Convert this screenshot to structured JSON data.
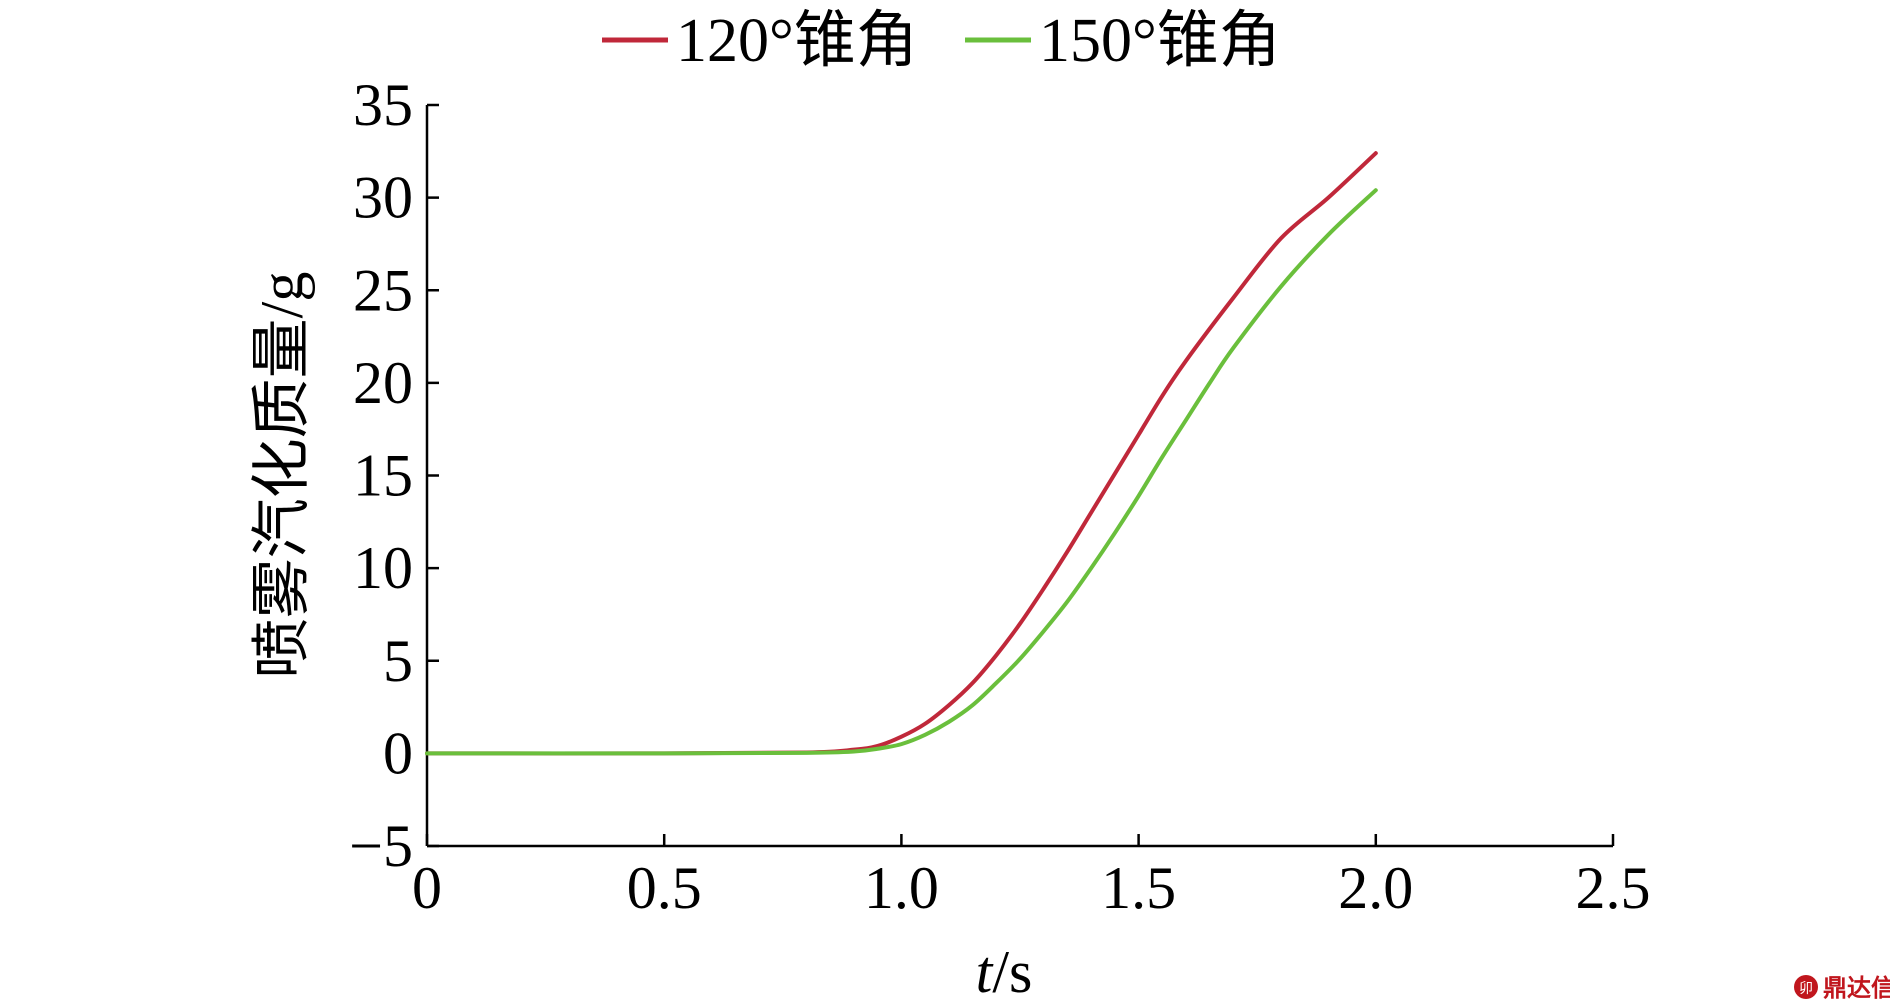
{
  "chart_data": {
    "type": "line",
    "xlabel_italic": "t",
    "xlabel_unit": "/s",
    "ylabel": "喷雾汽化质量/g",
    "xlim": [
      0,
      2.5
    ],
    "ylim": [
      -5,
      35
    ],
    "x_ticks": [
      "0",
      "0.5",
      "1.0",
      "1.5",
      "2.0",
      "2.5"
    ],
    "x_tick_values": [
      0,
      0.5,
      1.0,
      1.5,
      2.0,
      2.5
    ],
    "y_ticks": [
      "−5",
      "0",
      "5",
      "10",
      "15",
      "20",
      "25",
      "30",
      "35"
    ],
    "y_tick_values": [
      -5,
      0,
      5,
      10,
      15,
      20,
      25,
      30,
      35
    ],
    "legend_position": "top-center",
    "grid": false,
    "series": [
      {
        "name": "120°锥角",
        "color": "#c0283a",
        "x": [
          0,
          0.5,
          0.8,
          0.9,
          0.95,
          1.0,
          1.05,
          1.1,
          1.15,
          1.2,
          1.25,
          1.3,
          1.35,
          1.4,
          1.45,
          1.5,
          1.55,
          1.6,
          1.7,
          1.8,
          1.9,
          2.0
        ],
        "y": [
          0,
          0,
          0.05,
          0.2,
          0.4,
          0.9,
          1.6,
          2.6,
          3.8,
          5.3,
          7.0,
          8.9,
          10.9,
          13.0,
          15.1,
          17.2,
          19.3,
          21.2,
          24.6,
          27.8,
          30.0,
          32.4
        ]
      },
      {
        "name": "150°锥角",
        "color": "#6abf3c",
        "x": [
          0,
          0.5,
          0.8,
          0.9,
          0.95,
          1.0,
          1.05,
          1.1,
          1.15,
          1.2,
          1.25,
          1.3,
          1.35,
          1.4,
          1.45,
          1.5,
          1.55,
          1.6,
          1.65,
          1.7,
          1.8,
          1.9,
          2.0
        ],
        "y": [
          0,
          0,
          0.03,
          0.1,
          0.25,
          0.5,
          1.0,
          1.7,
          2.6,
          3.8,
          5.1,
          6.6,
          8.2,
          10.0,
          11.9,
          13.9,
          16.0,
          18.0,
          20.0,
          21.9,
          25.2,
          28.0,
          30.4
        ]
      }
    ]
  },
  "watermark": {
    "text": "鼎达信",
    "color": "#c0161d"
  }
}
